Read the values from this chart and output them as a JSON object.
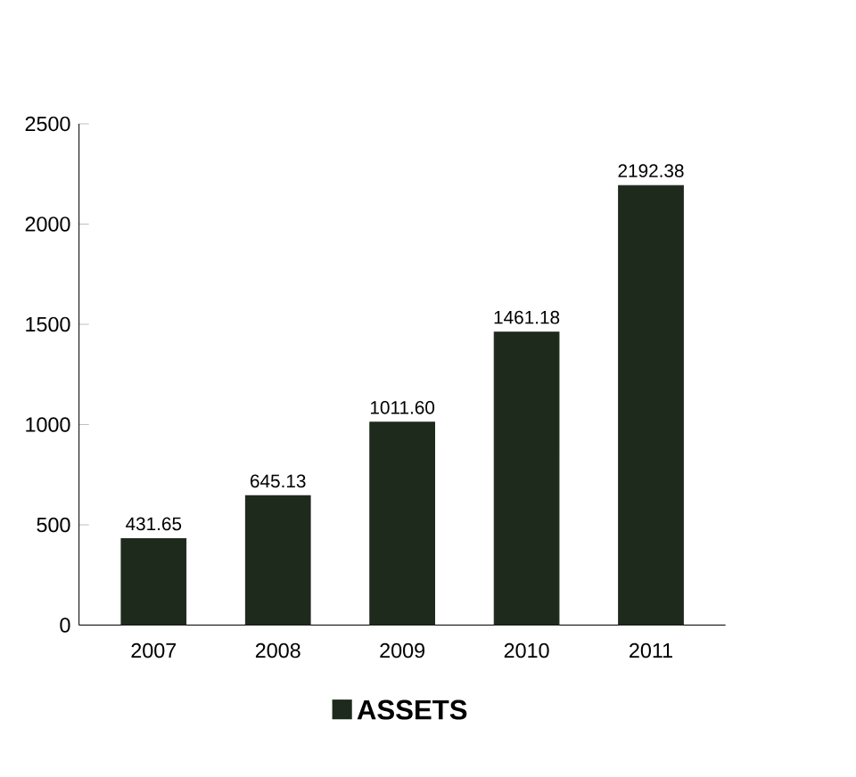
{
  "chart_data": {
    "type": "bar",
    "categories": [
      "2007",
      "2008",
      "2009",
      "2010",
      "2011"
    ],
    "series": [
      {
        "name": "ASSETS",
        "color": "#1e2a1c",
        "values": [
          431.65,
          645.13,
          1011.6,
          1461.18,
          2192.38
        ],
        "value_labels": [
          "431.65",
          "645.13",
          "1011.60",
          "1461.18",
          "2192.38"
        ]
      }
    ],
    "ylim": [
      0,
      2500
    ],
    "yticks": [
      0,
      500,
      1000,
      1500,
      2000,
      2500
    ],
    "legend": "bottom"
  }
}
